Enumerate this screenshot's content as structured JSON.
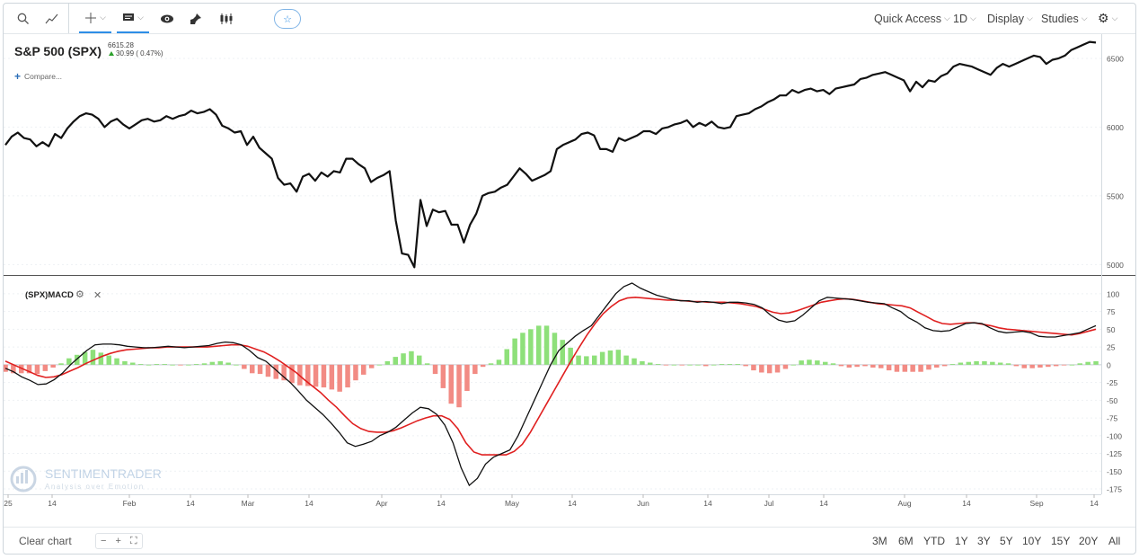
{
  "toolbar": {
    "right_menus": [
      "Quick Access",
      "1D",
      "Display",
      "Studies"
    ],
    "icons": [
      "search-icon",
      "trend-line-icon",
      "crosshair-icon",
      "comment-icon",
      "eye-icon",
      "pin-icon",
      "candlestick-icon",
      "star-icon",
      "gear-icon"
    ]
  },
  "symbol": {
    "title": "S&P 500 (SPX)",
    "last": "6615.28",
    "change": "30.99 ( 0.47%)",
    "compare": "Compare..."
  },
  "macd_panel": {
    "title": "(SPX)MACD"
  },
  "watermark": {
    "name": "SENTIMENTRADER",
    "tagline": "Analysis over Emotion"
  },
  "bottom": {
    "clear": "Clear chart",
    "zoom": [
      "−",
      "+",
      "⛶"
    ],
    "ranges": [
      "3M",
      "6M",
      "YTD",
      "1Y",
      "3Y",
      "5Y",
      "10Y",
      "15Y",
      "20Y",
      "All"
    ]
  },
  "colors": {
    "price_line": "#111111",
    "macd_line": "#111111",
    "signal_line": "#e02020",
    "hist_pos": "#8ee07a",
    "hist_neg": "#f28b84",
    "accent": "#2d8ee6",
    "up_arrow": "#2ca02c"
  },
  "chart_data": [
    {
      "type": "line",
      "title": "S&P 500 (SPX)",
      "ylim": [
        4950,
        6650
      ],
      "yticks": [
        5000,
        5500,
        6000,
        6500
      ],
      "xticks": [
        "25",
        "14",
        "Feb",
        "14",
        "Mar",
        "14",
        "Apr",
        "14",
        "May",
        "14",
        "Jun",
        "14",
        "Jul",
        "14",
        "Aug",
        "14",
        "Sep",
        "14"
      ],
      "series": [
        {
          "name": "S&P 500 (SPX)",
          "values": [
            5870,
            5930,
            5960,
            5920,
            5910,
            5860,
            5890,
            5860,
            5950,
            5920,
            5990,
            6040,
            6080,
            6100,
            6090,
            6060,
            6000,
            6040,
            6060,
            6020,
            5990,
            6020,
            6050,
            6060,
            6040,
            6050,
            6080,
            6060,
            6080,
            6090,
            6120,
            6100,
            6110,
            6130,
            6090,
            6010,
            5990,
            5960,
            5970,
            5870,
            5930,
            5850,
            5810,
            5770,
            5630,
            5580,
            5590,
            5530,
            5640,
            5660,
            5610,
            5670,
            5640,
            5680,
            5670,
            5770,
            5770,
            5730,
            5700,
            5600,
            5630,
            5650,
            5680,
            5320,
            5080,
            5070,
            4980,
            5470,
            5280,
            5400,
            5380,
            5390,
            5290,
            5290,
            5160,
            5290,
            5370,
            5500,
            5520,
            5530,
            5560,
            5580,
            5640,
            5700,
            5660,
            5610,
            5630,
            5650,
            5680,
            5840,
            5870,
            5890,
            5910,
            5950,
            5960,
            5940,
            5840,
            5840,
            5820,
            5920,
            5900,
            5920,
            5940,
            5970,
            5970,
            5950,
            5990,
            6000,
            6020,
            6030,
            6050,
            6000,
            6030,
            6010,
            6040,
            6000,
            5990,
            6000,
            6080,
            6090,
            6100,
            6130,
            6150,
            6180,
            6200,
            6230,
            6230,
            6270,
            6250,
            6270,
            6280,
            6260,
            6270,
            6240,
            6280,
            6290,
            6300,
            6310,
            6350,
            6360,
            6380,
            6390,
            6400,
            6380,
            6360,
            6340,
            6260,
            6330,
            6290,
            6340,
            6330,
            6370,
            6390,
            6440,
            6460,
            6450,
            6440,
            6420,
            6400,
            6380,
            6430,
            6460,
            6440,
            6460,
            6480,
            6500,
            6520,
            6510,
            6460,
            6490,
            6500,
            6520,
            6560,
            6580,
            6600,
            6620,
            6615
          ]
        }
      ]
    },
    {
      "type": "bar+line",
      "title": "(SPX)MACD",
      "ylim": [
        -180,
        115
      ],
      "yticks": [
        100,
        75,
        50,
        25,
        0,
        -25,
        -50,
        -75,
        -100,
        -125,
        -150,
        -175
      ],
      "series": [
        {
          "name": "MACD",
          "values": [
            -5,
            -10,
            -17,
            -22,
            -28,
            -27,
            -21,
            -12,
            0,
            10,
            20,
            28,
            29,
            29,
            28,
            26,
            25,
            24,
            24,
            25,
            26,
            25,
            24,
            25,
            26,
            27,
            30,
            32,
            31,
            28,
            20,
            10,
            5,
            -5,
            -15,
            -25,
            -37,
            -50,
            -60,
            -70,
            -82,
            -95,
            -110,
            -115,
            -112,
            -108,
            -100,
            -95,
            -88,
            -78,
            -68,
            -60,
            -62,
            -70,
            -85,
            -110,
            -145,
            -170,
            -160,
            -140,
            -130,
            -125,
            -120,
            -100,
            -75,
            -50,
            -25,
            0,
            20,
            30,
            40,
            48,
            55,
            70,
            85,
            100,
            110,
            115,
            108,
            103,
            98,
            95,
            92,
            90,
            90,
            88,
            89,
            88,
            86,
            88,
            88,
            87,
            85,
            80,
            70,
            63,
            60,
            62,
            70,
            80,
            90,
            95,
            94,
            93,
            92,
            90,
            88,
            87,
            86,
            80,
            75,
            66,
            60,
            52,
            48,
            47,
            48,
            53,
            58,
            59,
            58,
            52,
            47,
            45,
            46,
            47,
            45,
            40,
            39,
            39,
            41,
            43,
            45,
            50,
            55
          ]
        },
        {
          "name": "Signal",
          "values": [
            5,
            0,
            -5,
            -10,
            -15,
            -18,
            -17,
            -14,
            -9,
            -4,
            2,
            7,
            12,
            16,
            19,
            21,
            22,
            23,
            24,
            24,
            25,
            25,
            25,
            25,
            25,
            25,
            26,
            27,
            28,
            28,
            26,
            22,
            18,
            12,
            5,
            -3,
            -11,
            -21,
            -30,
            -39,
            -50,
            -60,
            -72,
            -83,
            -90,
            -94,
            -95,
            -95,
            -93,
            -89,
            -84,
            -79,
            -75,
            -72,
            -72,
            -77,
            -90,
            -110,
            -123,
            -127,
            -127,
            -127,
            -127,
            -122,
            -112,
            -95,
            -75,
            -55,
            -35,
            -15,
            5,
            24,
            42,
            58,
            72,
            82,
            90,
            94,
            95,
            94,
            93,
            92,
            91,
            91,
            90,
            89,
            89,
            88,
            88,
            88,
            87,
            86,
            84,
            82,
            78,
            74,
            72,
            73,
            76,
            80,
            84,
            88,
            90,
            92,
            93,
            92,
            90,
            88,
            86,
            85,
            84,
            83,
            80,
            74,
            68,
            62,
            58,
            57,
            58,
            59,
            59,
            57,
            55,
            52,
            50,
            49,
            48,
            47,
            46,
            45,
            44,
            43,
            42,
            44,
            47,
            50
          ]
        },
        {
          "name": "Histogram",
          "values": [
            -10,
            -12,
            -12,
            -12,
            -13,
            -9,
            -4,
            2,
            9,
            14,
            18,
            21,
            17,
            13,
            9,
            5,
            3,
            1,
            0,
            1,
            1,
            0,
            -1,
            0,
            1,
            2,
            4,
            5,
            3,
            0,
            -6,
            -12,
            -13,
            -17,
            -20,
            -22,
            -26,
            -29,
            -30,
            -31,
            -32,
            -35,
            -38,
            -32,
            -22,
            -14,
            -5,
            0,
            5,
            11,
            16,
            19,
            13,
            2,
            -13,
            -33,
            -55,
            -60,
            -37,
            -13,
            -3,
            2,
            7,
            22,
            37,
            45,
            50,
            55,
            55,
            45,
            35,
            24,
            13,
            12,
            13,
            18,
            20,
            21,
            13,
            9,
            5,
            3,
            1,
            -1,
            0,
            -1,
            0,
            0,
            -2,
            0,
            1,
            1,
            1,
            -2,
            -8,
            -11,
            -12,
            -11,
            -6,
            0,
            6,
            7,
            6,
            4,
            2,
            -2,
            -4,
            -3,
            -2,
            -4,
            -5,
            -8,
            -10,
            -10,
            -10,
            -10,
            -7,
            -4,
            -2,
            1,
            3,
            4,
            5,
            5,
            4,
            3,
            2,
            -2,
            -5,
            -5,
            -4,
            -3,
            -2,
            -1,
            0,
            2,
            4,
            5
          ]
        }
      ]
    }
  ]
}
